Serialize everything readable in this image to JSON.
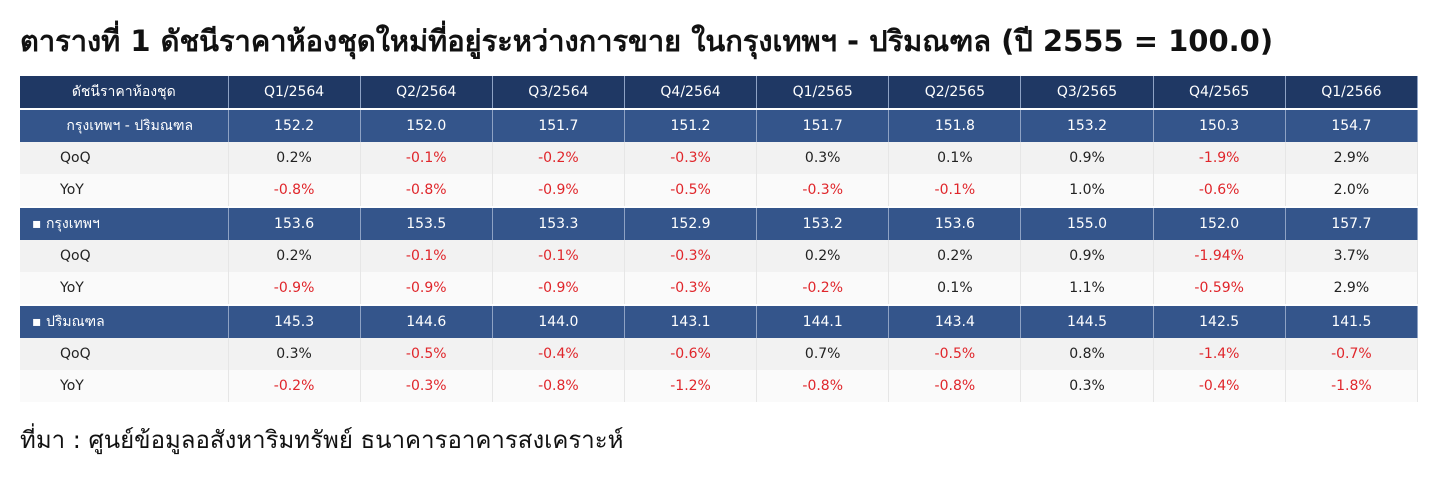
{
  "header": {
    "title": "ตารางที่ 1 ดัชนีราคาห้องชุดใหม่ที่อยู่ระหว่างการขาย ในกรุงเทพฯ - ปริมณฑล (ปี 2555 = 100.0)",
    "source": "ที่มา : ศูนย์ข้อมูลอสังหาริมทรัพย์ ธนาคารอาคารสงเคราะห์"
  },
  "table": {
    "columns": [
      "ดัชนีราคาห้องชุด",
      "Q1/2564",
      "Q2/2564",
      "Q3/2564",
      "Q4/2564",
      "Q1/2565",
      "Q2/2565",
      "Q3/2565",
      "Q4/2565",
      "Q1/2566"
    ],
    "rows": [
      [
        "กรุงเทพฯ - ปริมณฑล",
        "152.2",
        "152.0",
        "151.7",
        "151.2",
        "151.7",
        "151.8",
        "153.2",
        "150.3",
        "154.7"
      ],
      [
        "QoQ",
        "0.2%",
        "-0.1%",
        "-0.2%",
        "-0.3%",
        "0.3%",
        "0.1%",
        "0.9%",
        "-1.9%",
        "2.9%"
      ],
      [
        "YoY",
        "-0.8%",
        "-0.8%",
        "-0.9%",
        "-0.5%",
        "-0.3%",
        "-0.1%",
        "1.0%",
        "-0.6%",
        "2.0%"
      ],
      [
        "▪ กรุงเทพฯ",
        "153.6",
        "153.5",
        "153.3",
        "152.9",
        "153.2",
        "153.6",
        "155.0",
        "152.0",
        "157.7"
      ],
      [
        "QoQ",
        "0.2%",
        "-0.1%",
        "-0.1%",
        "-0.3%",
        "0.2%",
        "0.2%",
        "0.9%",
        "-1.94%",
        "3.7%"
      ],
      [
        "YoY",
        "-0.9%",
        "-0.9%",
        "-0.9%",
        "-0.3%",
        "-0.2%",
        "0.1%",
        "1.1%",
        "-0.59%",
        "2.9%"
      ],
      [
        "▪ ปริมณฑล",
        "145.3",
        "144.6",
        "144.0",
        "143.1",
        "144.1",
        "143.4",
        "144.5",
        "142.5",
        "141.5"
      ],
      [
        "QoQ",
        "0.3%",
        "-0.5%",
        "-0.4%",
        "-0.6%",
        "0.7%",
        "-0.5%",
        "0.8%",
        "-1.4%",
        "-0.7%"
      ],
      [
        "YoY",
        "-0.2%",
        "-0.3%",
        "-0.8%",
        "-1.2%",
        "-0.8%",
        "-0.8%",
        "0.3%",
        "-0.4%",
        "-1.8%"
      ]
    ]
  }
}
